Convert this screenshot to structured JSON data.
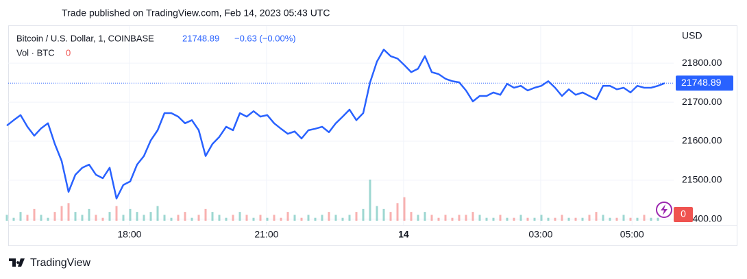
{
  "header": "Trade published on TradingView.com, Feb 14, 2023 05:43 UTC",
  "footer": "TradingView",
  "chart_data": {
    "type": "line",
    "title": "Bitcoin / U.S. Dollar, 1, COINBASE",
    "change_label": "−0.63 (−0.00%)",
    "volume_label": "Vol · BTC",
    "currency": "USD",
    "color": "#2962ff",
    "up_color": "#26a69a",
    "down_color": "#ef5350",
    "grid": true,
    "x": [
      "15:19",
      "15:28",
      "15:37",
      "15:46",
      "15:55",
      "16:04",
      "16:13",
      "16:22",
      "16:31",
      "16:40",
      "16:49",
      "16:58",
      "17:07",
      "17:16",
      "17:25",
      "17:34",
      "17:43",
      "17:52",
      "18:01",
      "18:10",
      "18:19",
      "18:28",
      "18:37",
      "18:46",
      "18:55",
      "19:04",
      "19:13",
      "19:22",
      "19:31",
      "19:40",
      "19:49",
      "19:58",
      "20:07",
      "20:16",
      "20:25",
      "20:34",
      "20:43",
      "20:52",
      "21:01",
      "21:10",
      "21:19",
      "21:28",
      "21:37",
      "21:46",
      "21:55",
      "22:04",
      "22:13",
      "22:22",
      "22:31",
      "22:40",
      "22:49",
      "22:58",
      "23:07",
      "23:16",
      "23:25",
      "23:34",
      "23:43",
      "23:52",
      "00:01",
      "00:10",
      "00:19",
      "00:28",
      "00:37",
      "00:46",
      "00:55",
      "01:04",
      "01:13",
      "01:22",
      "01:31",
      "01:40",
      "01:49",
      "01:58",
      "02:07",
      "02:16",
      "02:25",
      "02:34",
      "02:43",
      "02:52",
      "03:01",
      "03:10",
      "03:19",
      "03:28",
      "03:37",
      "03:46",
      "03:55",
      "04:04",
      "04:13",
      "04:22",
      "04:31",
      "04:40",
      "04:49",
      "04:58",
      "05:07",
      "05:16",
      "05:25",
      "05:34",
      "05:43"
    ],
    "values": [
      21640,
      21654,
      21667,
      21637,
      21614,
      21633,
      21646,
      21593,
      21549,
      21470,
      21514,
      21532,
      21540,
      21514,
      21505,
      21532,
      21453,
      21488,
      21497,
      21540,
      21562,
      21602,
      21628,
      21672,
      21672,
      21663,
      21646,
      21654,
      21628,
      21562,
      21593,
      21611,
      21637,
      21628,
      21672,
      21663,
      21677,
      21663,
      21667,
      21646,
      21632,
      21619,
      21625,
      21607,
      21628,
      21632,
      21637,
      21623,
      21646,
      21663,
      21681,
      21654,
      21672,
      21751,
      21804,
      21835,
      21818,
      21812,
      21795,
      21777,
      21786,
      21818,
      21777,
      21772,
      21760,
      21754,
      21751,
      21730,
      21702,
      21716,
      21716,
      21725,
      21719,
      21747,
      21737,
      21742,
      21730,
      21737,
      21742,
      21754,
      21737,
      21716,
      21733,
      21719,
      21725,
      21716,
      21707,
      21742,
      21742,
      21733,
      21737,
      21725,
      21742,
      21737,
      21737,
      21742,
      21748.89
    ],
    "volume": [
      2,
      1,
      3,
      2,
      4,
      2,
      1,
      3,
      5,
      6,
      3,
      2,
      4,
      2,
      1,
      3,
      5,
      2,
      4,
      3,
      2,
      3,
      5,
      2,
      1,
      2,
      3,
      1,
      2,
      4,
      3,
      2,
      1,
      2,
      3,
      2,
      1,
      2,
      1,
      2,
      1,
      3,
      2,
      1,
      2,
      1,
      2,
      3,
      2,
      1,
      2,
      3,
      4,
      14,
      5,
      4,
      3,
      6,
      8,
      3,
      2,
      3,
      2,
      1,
      2,
      1,
      2,
      2,
      3,
      2,
      1,
      1,
      2,
      1,
      1,
      2,
      1,
      1,
      2,
      1,
      1,
      2,
      1,
      1,
      1,
      2,
      3,
      2,
      1,
      1,
      2,
      1,
      1,
      2,
      1,
      1,
      0
    ],
    "xlim": [
      "15:19",
      "05:43"
    ],
    "xticks": [
      "18:00",
      "21:00",
      {
        "value": "00:00",
        "label": "14"
      },
      "03:00",
      "05:00"
    ],
    "ylim": [
      21382,
      21897
    ],
    "yticks": [
      {
        "value": 21400,
        "label": "21400.00"
      },
      {
        "value": 21500,
        "label": "21500.00"
      },
      {
        "value": 21600,
        "label": "21600.00"
      },
      {
        "value": 21700,
        "label": "21700.00"
      },
      {
        "value": 21800,
        "label": "21800.00"
      }
    ]
  }
}
